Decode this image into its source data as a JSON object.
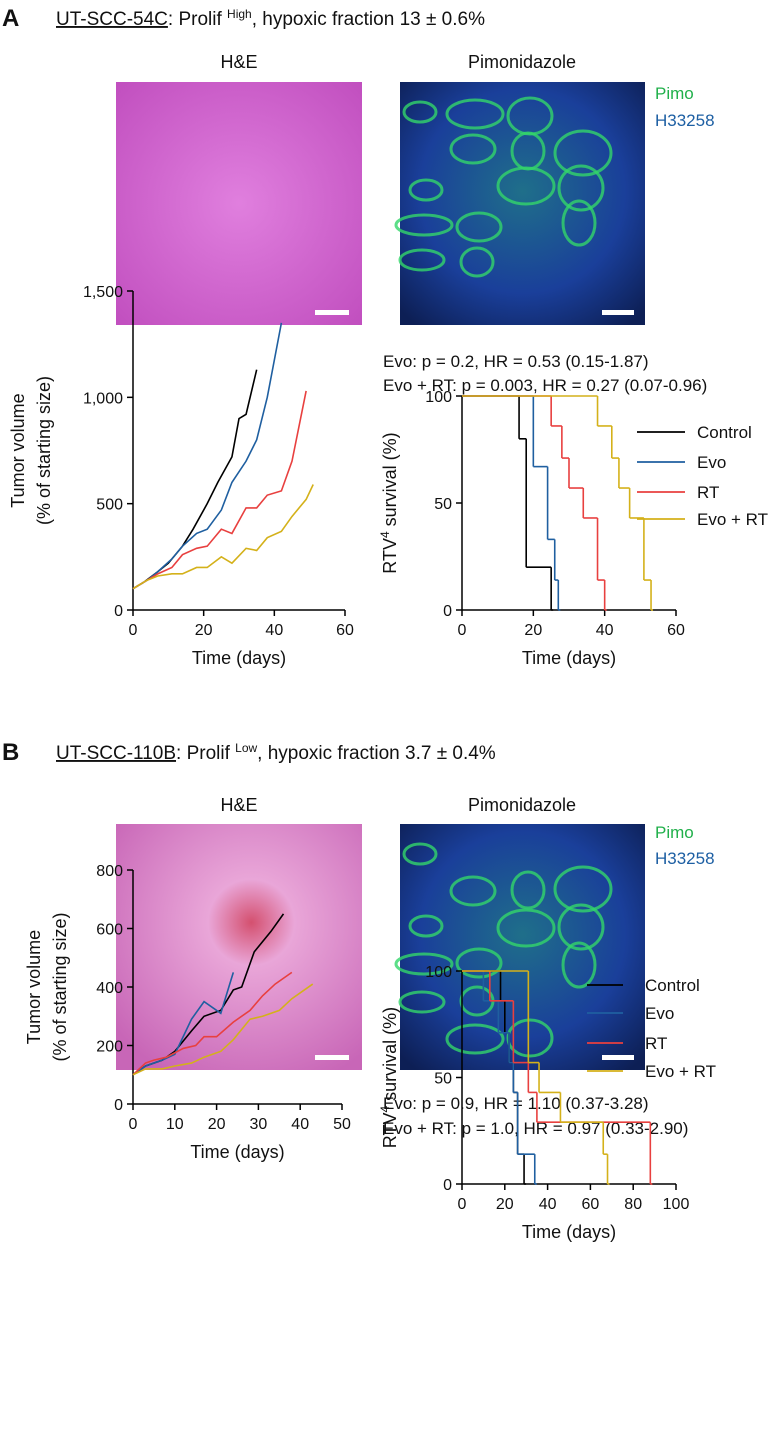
{
  "panels": [
    {
      "letter": "A",
      "cell_line": "UT-SCC-54C",
      "title_prefix": ": Prolif ",
      "prolif_level": "High",
      "title_suffix": ", hypoxic fraction 13 ± 0.6%",
      "image_titles": [
        "H&E",
        "Pimonidazole"
      ],
      "stain_legend": [
        "Pimo",
        "H33258"
      ]
    },
    {
      "letter": "B",
      "cell_line": "UT-SCC-110B",
      "title_prefix": ": Prolif ",
      "prolif_level": "Low",
      "title_suffix": ", hypoxic fraction 3.7 ± 0.4%",
      "image_titles": [
        "H&E",
        "Pimonidazole"
      ],
      "stain_legend": [
        "Pimo",
        "H33258"
      ]
    }
  ],
  "chart_data": [
    {
      "type": "line",
      "xlabel": "Time (days)",
      "ylabel": [
        "Tumor volume",
        "(% of starting size)"
      ],
      "xlim": [
        0,
        60
      ],
      "xticks": [
        0,
        20,
        40,
        60
      ],
      "ylim": [
        0,
        1500
      ],
      "yticks": [
        0,
        500,
        {
          "value": 1000,
          "label": "1,000"
        },
        {
          "value": 1500,
          "label": "1,500"
        }
      ],
      "series": [
        {
          "color": "#000000",
          "x": [
            0,
            3,
            7,
            10,
            14,
            17,
            21,
            24,
            28,
            30,
            32,
            35
          ],
          "values": [
            100,
            130,
            180,
            220,
            300,
            380,
            500,
            600,
            720,
            900,
            920,
            1130
          ]
        },
        {
          "color": "#1f5fa0",
          "x": [
            0,
            4,
            7,
            11,
            14,
            18,
            21,
            25,
            28,
            32,
            35,
            38,
            42
          ],
          "values": [
            100,
            140,
            180,
            240,
            300,
            360,
            380,
            470,
            600,
            700,
            800,
            1000,
            1350
          ]
        },
        {
          "color": "#e8403f",
          "x": [
            0,
            4,
            7,
            11,
            14,
            18,
            21,
            25,
            28,
            32,
            35,
            38,
            42,
            45,
            49
          ],
          "values": [
            100,
            140,
            170,
            200,
            260,
            290,
            300,
            380,
            360,
            480,
            480,
            540,
            560,
            700,
            1030
          ]
        },
        {
          "color": "#d4b11a",
          "x": [
            0,
            4,
            7,
            11,
            14,
            18,
            21,
            25,
            28,
            32,
            35,
            38,
            42,
            45,
            49,
            51
          ],
          "values": [
            100,
            140,
            160,
            170,
            170,
            200,
            200,
            250,
            220,
            290,
            280,
            340,
            370,
            440,
            520,
            590
          ]
        }
      ]
    },
    {
      "type": "survival",
      "xlabel": "Time (days)",
      "ylabel": {
        "text": "RTV",
        "superscript": "4",
        "rest": " survival (%)"
      },
      "annotations": [
        "Evo: p = 0.2, HR = 0.53 (0.15-1.87)",
        "Evo + RT: p = 0.003, HR = 0.27 (0.07-0.96)"
      ],
      "xlim": [
        0,
        60
      ],
      "xticks": [
        0,
        20,
        40,
        60
      ],
      "ylim": [
        0,
        100
      ],
      "yticks": [
        0,
        50,
        100
      ],
      "series": [
        {
          "name": "Control",
          "color": "#000000",
          "x": [
            0,
            16,
            18,
            25
          ],
          "values": [
            100,
            80,
            20,
            0
          ]
        },
        {
          "name": "Evo",
          "color": "#1f5fa0",
          "x": [
            0,
            20,
            24,
            26,
            27
          ],
          "values": [
            100,
            67,
            33,
            14,
            0
          ]
        },
        {
          "name": "RT",
          "color": "#e8403f",
          "x": [
            0,
            25,
            28,
            30,
            34,
            38,
            40
          ],
          "values": [
            100,
            86,
            71,
            57,
            43,
            14,
            0
          ]
        },
        {
          "name": "Evo + RT",
          "color": "#d4b11a",
          "x": [
            0,
            38,
            42,
            44,
            47,
            51,
            53
          ],
          "values": [
            100,
            86,
            71,
            57,
            43,
            14,
            0
          ]
        }
      ]
    },
    {
      "type": "line",
      "xlabel": "Time (days)",
      "ylabel": [
        "Tumor volume",
        "(% of starting size)"
      ],
      "xlim": [
        0,
        50
      ],
      "xticks": [
        0,
        10,
        20,
        30,
        40,
        50
      ],
      "ylim": [
        0,
        800
      ],
      "yticks": [
        0,
        200,
        400,
        600,
        800
      ],
      "series": [
        {
          "color": "#000000",
          "x": [
            0,
            3,
            7,
            10,
            14,
            17,
            21,
            24,
            26,
            29,
            33,
            36
          ],
          "values": [
            100,
            130,
            150,
            180,
            250,
            300,
            320,
            390,
            400,
            520,
            590,
            650
          ]
        },
        {
          "color": "#1f5fa0",
          "x": [
            0,
            3,
            7,
            10,
            14,
            17,
            21,
            24
          ],
          "values": [
            100,
            130,
            150,
            170,
            290,
            350,
            310,
            450
          ]
        },
        {
          "color": "#e8403f",
          "x": [
            0,
            3,
            5,
            8,
            12,
            15,
            17,
            20,
            24,
            28,
            31,
            34,
            38
          ],
          "values": [
            100,
            140,
            150,
            160,
            190,
            200,
            230,
            230,
            280,
            320,
            370,
            410,
            450
          ]
        },
        {
          "color": "#d4b11a",
          "x": [
            0,
            3,
            7,
            10,
            14,
            17,
            21,
            24,
            28,
            31,
            35,
            38,
            43
          ],
          "values": [
            100,
            120,
            120,
            130,
            140,
            160,
            180,
            220,
            290,
            300,
            320,
            360,
            410
          ]
        }
      ]
    },
    {
      "type": "survival",
      "xlabel": "Time (days)",
      "ylabel": {
        "text": "RTV",
        "superscript": "4",
        "rest": " survival (%)"
      },
      "annotations": [
        "Evo: p = 0.9, HR = 1.10 (0.37-3.28)",
        "Evo + RT: p = 1.0, HR = 0.97 (0.33-2.90)"
      ],
      "xlim": [
        0,
        100
      ],
      "xticks": [
        0,
        20,
        40,
        60,
        80,
        100
      ],
      "ylim": [
        0,
        100
      ],
      "yticks": [
        0,
        50,
        100
      ],
      "series": [
        {
          "name": "Control",
          "color": "#000000",
          "x": [
            0,
            18,
            20,
            22,
            24,
            26,
            29
          ],
          "values": [
            100,
            86,
            71,
            57,
            43,
            14,
            0
          ]
        },
        {
          "name": "Evo",
          "color": "#1f5fa0",
          "x": [
            0,
            10,
            17,
            22,
            24,
            26,
            34
          ],
          "values": [
            100,
            86,
            71,
            57,
            43,
            14,
            0
          ]
        },
        {
          "name": "RT",
          "color": "#e8403f",
          "x": [
            0,
            13,
            24,
            31,
            35,
            88
          ],
          "values": [
            100,
            86,
            57,
            43,
            29,
            0
          ]
        },
        {
          "name": "Evo + RT",
          "color": "#d4b11a",
          "x": [
            0,
            31,
            36,
            46,
            66,
            68
          ],
          "values": [
            100,
            57,
            43,
            29,
            14,
            0
          ]
        }
      ]
    }
  ]
}
